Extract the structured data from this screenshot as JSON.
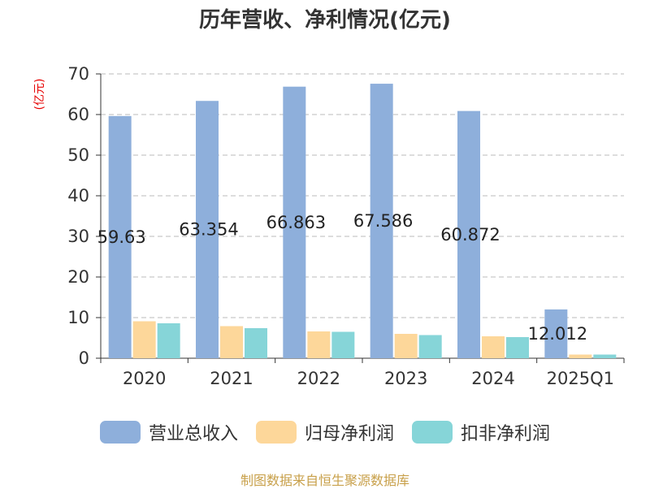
{
  "title": "历年营收、净利情况(亿元)",
  "unit_label": "(亿元)",
  "source": "制图数据来自恒生聚源数据库",
  "colors": {
    "revenue": "#8eafdb",
    "net_profit": "#fdd79a",
    "deducted_profit": "#86d5d8",
    "axis": "#333333",
    "grid": "#bbbbbb",
    "unit": "#e60000"
  },
  "chart_data": {
    "type": "bar",
    "title": "历年营收、净利情况(亿元)",
    "ylabel": "(亿元)",
    "xlabel": "",
    "categories": [
      "2020",
      "2021",
      "2022",
      "2023",
      "2024",
      "2025Q1"
    ],
    "ylim": [
      0,
      70
    ],
    "yticks": [
      0,
      10,
      20,
      30,
      40,
      50,
      60,
      70
    ],
    "grid": true,
    "legend_position": "bottom",
    "series": [
      {
        "name": "营业总收入",
        "color": "#8eafdb",
        "values": [
          59.63,
          63.354,
          66.863,
          67.586,
          60.872,
          12.012
        ],
        "labels": [
          "59.63",
          "63.354",
          "66.863",
          "67.586",
          "60.872",
          "12.012"
        ]
      },
      {
        "name": "归母净利润",
        "color": "#fdd79a",
        "values": [
          9.1,
          7.9,
          6.6,
          6.0,
          5.4,
          0.9
        ]
      },
      {
        "name": "扣非净利润",
        "color": "#86d5d8",
        "values": [
          8.6,
          7.4,
          6.5,
          5.7,
          5.2,
          0.9
        ]
      }
    ]
  }
}
